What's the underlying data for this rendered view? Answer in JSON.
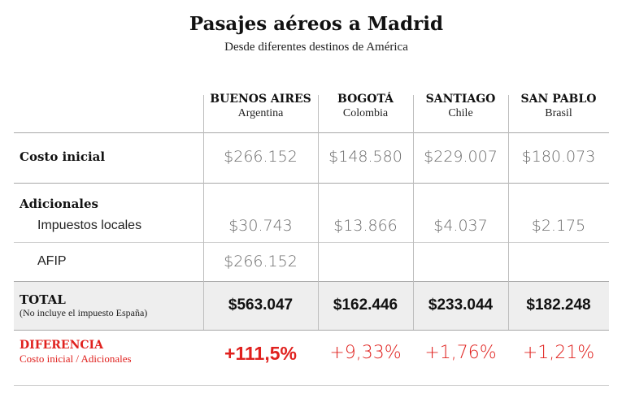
{
  "header": {
    "title": "Pasajes aéreos a Madrid",
    "subtitle": "Desde diferentes destinos de América"
  },
  "columns": [
    {
      "city": "BUENOS AIRES",
      "country": "Argentina"
    },
    {
      "city": "BOGOTÁ",
      "country": "Colombia"
    },
    {
      "city": "SANTIAGO",
      "country": "Chile"
    },
    {
      "city": "SAN PABLO",
      "country": "Brasil"
    }
  ],
  "rows": {
    "costo_inicial": {
      "label": "Costo inicial",
      "values": [
        "$266.152",
        "$148.580",
        "$229.007",
        "$180.073"
      ]
    },
    "adicionales": {
      "label": "Adicionales",
      "impuestos": {
        "label": "Impuestos locales",
        "values": [
          "$30.743",
          "$13.866",
          "$4.037",
          "$2.175"
        ]
      },
      "afip": {
        "label": "AFIP",
        "values": [
          "$266.152"
        ]
      }
    },
    "total": {
      "label": "TOTAL",
      "note": "(No incluye el impuesto España)",
      "values": [
        "$563.047",
        "$162.446",
        "$233.044",
        "$182.248"
      ]
    },
    "diferencia": {
      "label": "DIFERENCIA",
      "note": "Costo inicial / Adicionales",
      "values": [
        "+111,5%",
        "+9,33%",
        "+1,76%",
        "+1,21%"
      ]
    }
  },
  "colors": {
    "accent_red": "#e0211e",
    "total_band": "#eeeeee",
    "value_gray": "#6d6d6d"
  }
}
